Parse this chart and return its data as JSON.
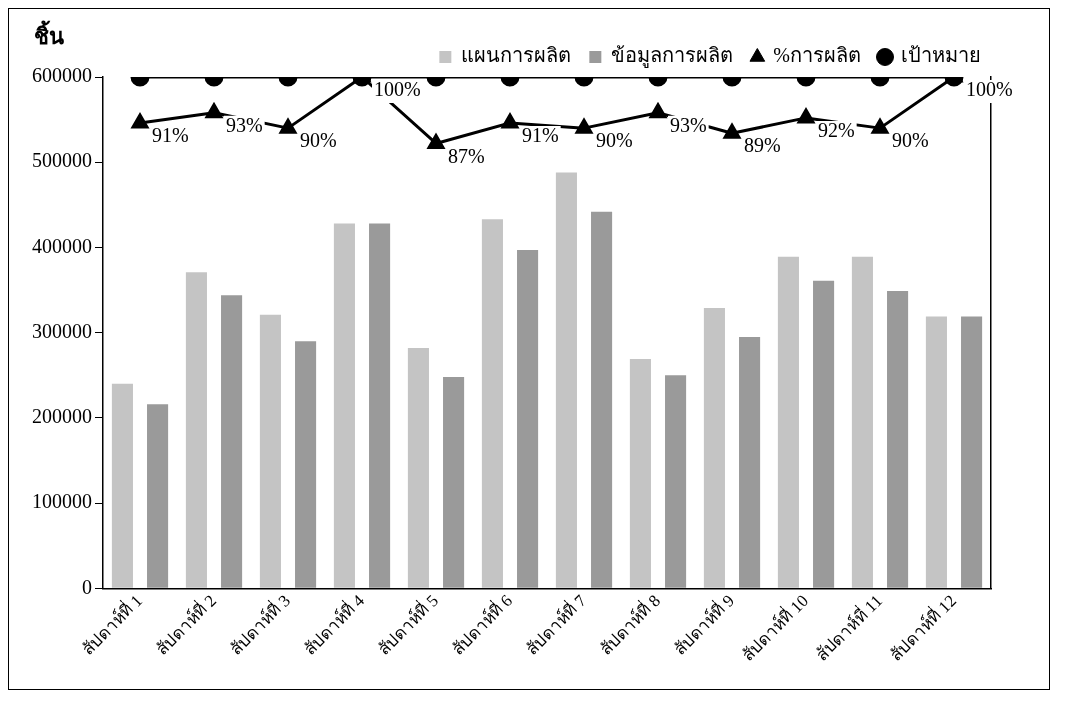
{
  "chart_data": {
    "type": "bar",
    "ylabel": "ชิ้น",
    "categories": [
      "สัปดาห์ที่ 1",
      "สัปดาห์ที่ 2",
      "สัปดาห์ที่ 3",
      "สัปดาห์ที่ 4",
      "สัปดาห์ที่ 5",
      "สัปดาห์ที่ 6",
      "สัปดาห์ที่ 7",
      "สัปดาห์ที่ 8",
      "สัปดาห์ที่ 9",
      "สัปดาห์ที่ 10",
      "สัปดาห์ที่ 11",
      "สัปดาห์ที่ 12"
    ],
    "series": [
      {
        "name": "แผนการผลิต",
        "color": "#c4c4c4",
        "values": [
          240000,
          371000,
          321000,
          428000,
          282000,
          433000,
          488000,
          269000,
          329000,
          389000,
          389000,
          319000
        ]
      },
      {
        "name": "ข้อมูลการผลิต",
        "color": "#9a9a9a",
        "values": [
          216000,
          344000,
          290000,
          428000,
          248000,
          397000,
          442000,
          250000,
          295000,
          361000,
          349000,
          319000
        ]
      },
      {
        "name": "%การผลิต",
        "type": "line",
        "axis": "y2",
        "color": "#000000",
        "marker": "triangle",
        "values": [
          91,
          93,
          90,
          100,
          87,
          91,
          90,
          93,
          89,
          92,
          90,
          100
        ],
        "value_labels": [
          "91%",
          "93%",
          "90%",
          "100%",
          "87%",
          "91%",
          "90%",
          "93%",
          "89%",
          "92%",
          "90%",
          "100%"
        ]
      },
      {
        "name": "เป้าหมาย",
        "type": "line",
        "axis": "y2",
        "color": "#000000",
        "marker": "circle",
        "values": [
          100,
          100,
          100,
          100,
          100,
          100,
          100,
          100,
          100,
          100,
          100,
          100
        ]
      }
    ],
    "ylim": [
      0,
      600000
    ],
    "yticks": [
      0,
      100000,
      200000,
      300000,
      400000,
      500000,
      600000
    ],
    "y2lim": [
      0,
      100
    ],
    "tick_labels": "xy",
    "grid": false,
    "legend": "top right"
  }
}
